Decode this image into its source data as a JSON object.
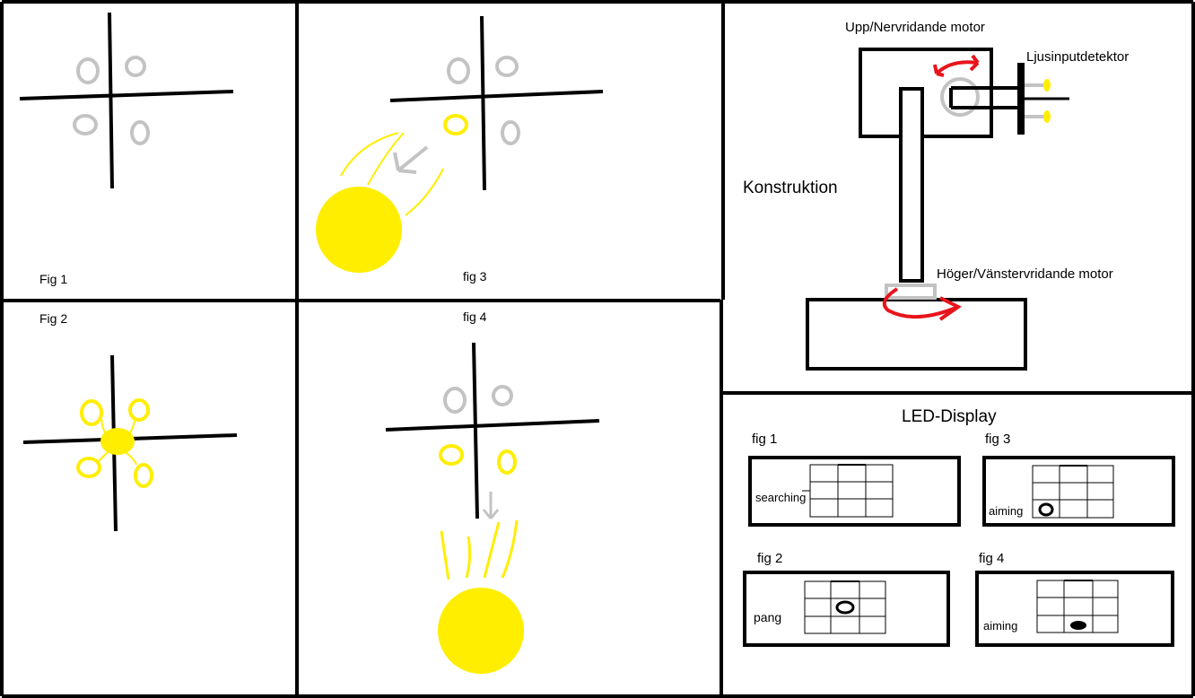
{
  "colors": {
    "ink": "#000000",
    "sun": "#ffee00",
    "detector_grey": "#c3c3c3",
    "rotation_arrow": "#e8141c"
  },
  "panels": {
    "fig1": {
      "label": "Fig 1"
    },
    "fig2": {
      "label": "Fig 2"
    },
    "fig3": {
      "label": "fig 3"
    },
    "fig4": {
      "label": "fig 4"
    }
  },
  "construction": {
    "title": "Konstruktion",
    "top_motor_label": "Upp/Nervridande motor",
    "detector_label": "Ljusinputdetektor",
    "bottom_motor_label": "Höger/Vänstervridande motor"
  },
  "led_display": {
    "title": "LED-Display",
    "figures": [
      {
        "label": "fig 1",
        "state": "searching"
      },
      {
        "label": "fig 3",
        "state": "aiming"
      },
      {
        "label": "fig 2",
        "state": "pang"
      },
      {
        "label": "fig 4",
        "state": "aiming"
      }
    ]
  }
}
